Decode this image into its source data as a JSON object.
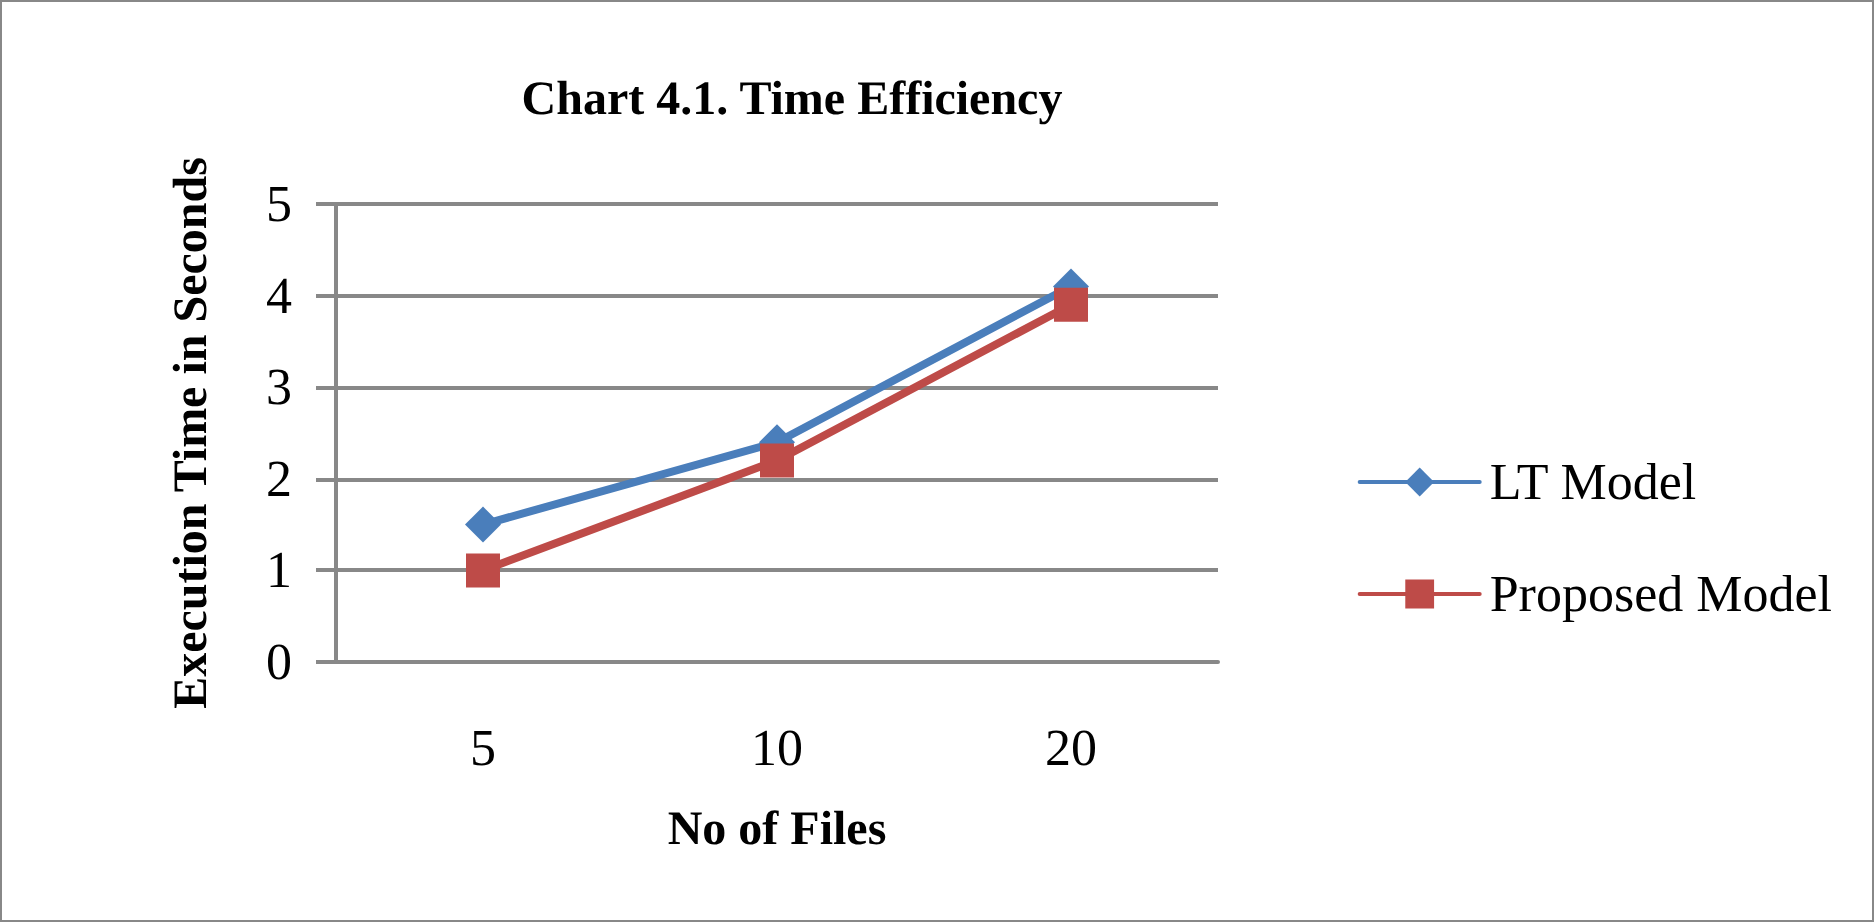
{
  "chart_data": {
    "type": "line",
    "title": "Chart 4.1. Time Efficiency",
    "xlabel": "No of Files",
    "ylabel": "Execution Time in Seconds",
    "categories": [
      "5",
      "10",
      "20"
    ],
    "series": [
      {
        "name": "LT Model",
        "color": "#4a7ebb",
        "values": [
          1.5,
          2.4,
          4.1
        ],
        "marker": "diamond"
      },
      {
        "name": "Proposed Model",
        "color": "#be4b48",
        "values": [
          1.0,
          2.2,
          3.9
        ],
        "marker": "square"
      }
    ],
    "ylim": [
      0,
      5
    ],
    "yticks": [
      0,
      1,
      2,
      3,
      4,
      5
    ],
    "grid": "y",
    "legend": "right",
    "line_style": "solid"
  }
}
